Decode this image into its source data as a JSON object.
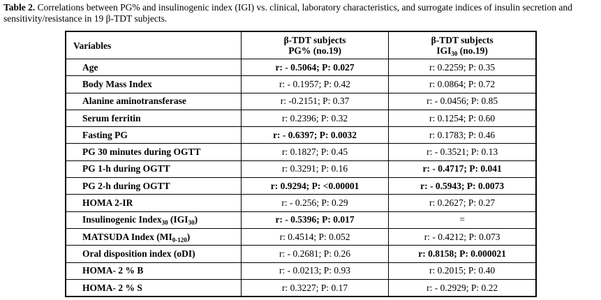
{
  "caption": {
    "label": "Table 2.",
    "text": "Correlations between PG% and insulinogenic index (IGI) vs. clinical, laboratory characteristics, and surrogate indices of insulin secretion and sensitivity/resistance in 19 β-TDT subjects."
  },
  "table": {
    "header": [
      [
        "Variables"
      ],
      [
        "β-TDT subjects",
        [
          "PG% (no.19)"
        ]
      ],
      [
        "β-TDT subjects",
        [
          "IGI",
          "30",
          " (no.19)"
        ]
      ]
    ],
    "rows": [
      {
        "variable": [
          "Age"
        ],
        "pg": {
          "text": "r: - 0.5064; P: 0.027",
          "bold": true
        },
        "igi": {
          "text": "r: 0.2259; P: 0.35",
          "bold": false
        }
      },
      {
        "variable": [
          "Body Mass Index"
        ],
        "pg": {
          "text": "r: - 0.1957; P: 0.42",
          "bold": false
        },
        "igi": {
          "text": "r: 0.0864; P: 0.72",
          "bold": false
        }
      },
      {
        "variable": [
          "Alanine aminotransferase"
        ],
        "pg": {
          "text": "r: -0.2151; P: 0.37",
          "bold": false
        },
        "igi": {
          "text": "r: - 0.0456; P: 0.85",
          "bold": false
        }
      },
      {
        "variable": [
          "Serum ferritin"
        ],
        "pg": {
          "text": "r: 0.2396; P: 0.32",
          "bold": false
        },
        "igi": {
          "text": "r: 0.1254; P: 0.60",
          "bold": false
        }
      },
      {
        "variable": [
          "Fasting PG"
        ],
        "pg": {
          "text": "r: - 0.6397; P: 0.0032",
          "bold": true
        },
        "igi": {
          "text": "r: 0.1783; P: 0.46",
          "bold": false
        }
      },
      {
        "variable": [
          "PG 30 minutes during OGTT"
        ],
        "pg": {
          "text": "r: 0.1827; P: 0.45",
          "bold": false
        },
        "igi": {
          "text": "r: - 0.3521; P: 0.13",
          "bold": false
        }
      },
      {
        "variable": [
          "PG 1-h during OGTT"
        ],
        "pg": {
          "text": "r: 0.3291; P: 0.16",
          "bold": false
        },
        "igi": {
          "text": "r: - 0.4717; P: 0.041",
          "bold": true
        }
      },
      {
        "variable": [
          "PG 2-h during OGTT"
        ],
        "pg": {
          "text": "r: 0.9294; P: <0.00001",
          "bold": true
        },
        "igi": {
          "text": "r: - 0.5943; P: 0.0073",
          "bold": true
        }
      },
      {
        "variable": [
          "HOMA 2-IR"
        ],
        "pg": {
          "text": "r: - 0.256; P: 0.29",
          "bold": false
        },
        "igi": {
          "text": "r: 0.2627; P: 0.27",
          "bold": false
        }
      },
      {
        "variable": [
          "Insulinogenic Index",
          "30",
          " (IGI",
          "30",
          ")"
        ],
        "pg": {
          "text": "r: - 0.5396; P: 0.017",
          "bold": true
        },
        "igi": {
          "text": "=",
          "bold": false
        }
      },
      {
        "variable": [
          "MATSUDA Index (MI",
          "0-120",
          ")"
        ],
        "pg": {
          "text": "r: 0.4514; P: 0.052",
          "bold": false
        },
        "igi": {
          "text": "r: - 0.4212; P: 0.073",
          "bold": false
        }
      },
      {
        "variable": [
          "Oral disposition index (oDI)"
        ],
        "pg": {
          "text": "r: - 0.2681; P: 0.26",
          "bold": false
        },
        "igi": {
          "text": "r: 0.8158; P: 0.000021",
          "bold": true
        }
      },
      {
        "variable": [
          "HOMA- 2 % B"
        ],
        "pg": {
          "text": "r: - 0.0213; P: 0.93",
          "bold": false
        },
        "igi": {
          "text": "r: 0.2015; P: 0.40",
          "bold": false
        }
      },
      {
        "variable": [
          "HOMA- 2 % S"
        ],
        "pg": {
          "text": "r: 0.3227; P: 0.17",
          "bold": false
        },
        "igi": {
          "text": "r: - 0.2929; P: 0.22",
          "bold": false
        }
      }
    ]
  }
}
